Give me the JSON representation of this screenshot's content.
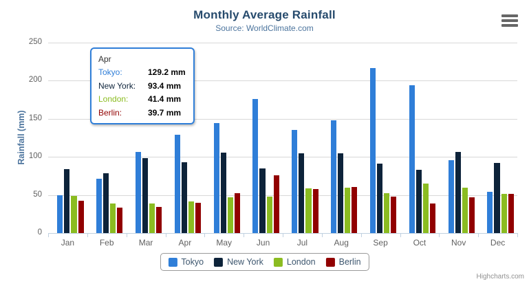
{
  "chart": {
    "title": "Monthly Average Rainfall",
    "subtitle": "Source: WorldClimate.com",
    "y_axis_title": "Rainfall (mm)",
    "credit": "Highcharts.com",
    "menu_icon": "hamburger-export-menu"
  },
  "chart_data": {
    "type": "bar",
    "title": "Monthly Average Rainfall",
    "subtitle": "Source: WorldClimate.com",
    "xlabel": "",
    "ylabel": "Rainfall (mm)",
    "ylim": [
      0,
      250
    ],
    "yticks": [
      0,
      50,
      100,
      150,
      200,
      250
    ],
    "grid": true,
    "legend_position": "bottom",
    "categories": [
      "Jan",
      "Feb",
      "Mar",
      "Apr",
      "May",
      "Jun",
      "Jul",
      "Aug",
      "Sep",
      "Oct",
      "Nov",
      "Dec"
    ],
    "series": [
      {
        "name": "Tokyo",
        "color": "#2f7ed8",
        "values": [
          49.9,
          71.5,
          106.4,
          129.2,
          144.0,
          176.0,
          135.6,
          148.5,
          216.4,
          194.1,
          95.6,
          54.4
        ]
      },
      {
        "name": "New York",
        "color": "#0d233a",
        "values": [
          83.6,
          78.8,
          98.5,
          93.4,
          106.0,
          84.5,
          105.0,
          104.3,
          91.2,
          83.5,
          106.6,
          92.3
        ]
      },
      {
        "name": "London",
        "color": "#8bbc21",
        "values": [
          48.9,
          38.8,
          39.3,
          41.4,
          47.0,
          48.3,
          59.0,
          59.6,
          52.4,
          65.2,
          59.3,
          51.2
        ]
      },
      {
        "name": "Berlin",
        "color": "#910000",
        "values": [
          42.4,
          33.2,
          34.5,
          39.7,
          52.6,
          75.5,
          57.4,
          60.4,
          47.6,
          39.1,
          46.8,
          51.1
        ]
      }
    ]
  },
  "tooltip": {
    "header": "Apr",
    "rows": [
      {
        "label": "Tokyo:",
        "value": "129.2 mm",
        "color": "#2f7ed8"
      },
      {
        "label": "New York:",
        "value": "93.4 mm",
        "color": "#0d233a"
      },
      {
        "label": "London:",
        "value": "41.4 mm",
        "color": "#8bbc21"
      },
      {
        "label": "Berlin:",
        "value": "39.7 mm",
        "color": "#910000"
      }
    ]
  },
  "colors": {
    "title": "#274b6d",
    "subtitle": "#4d759e",
    "grid_line": "#d8d8d8",
    "axis_line": "#c0d0e0",
    "axis_label": "#606060",
    "legend_text": "#3E576F",
    "tooltip_border": "#2f7ed8",
    "menu_icon": "#666666",
    "credit": "#909090"
  }
}
